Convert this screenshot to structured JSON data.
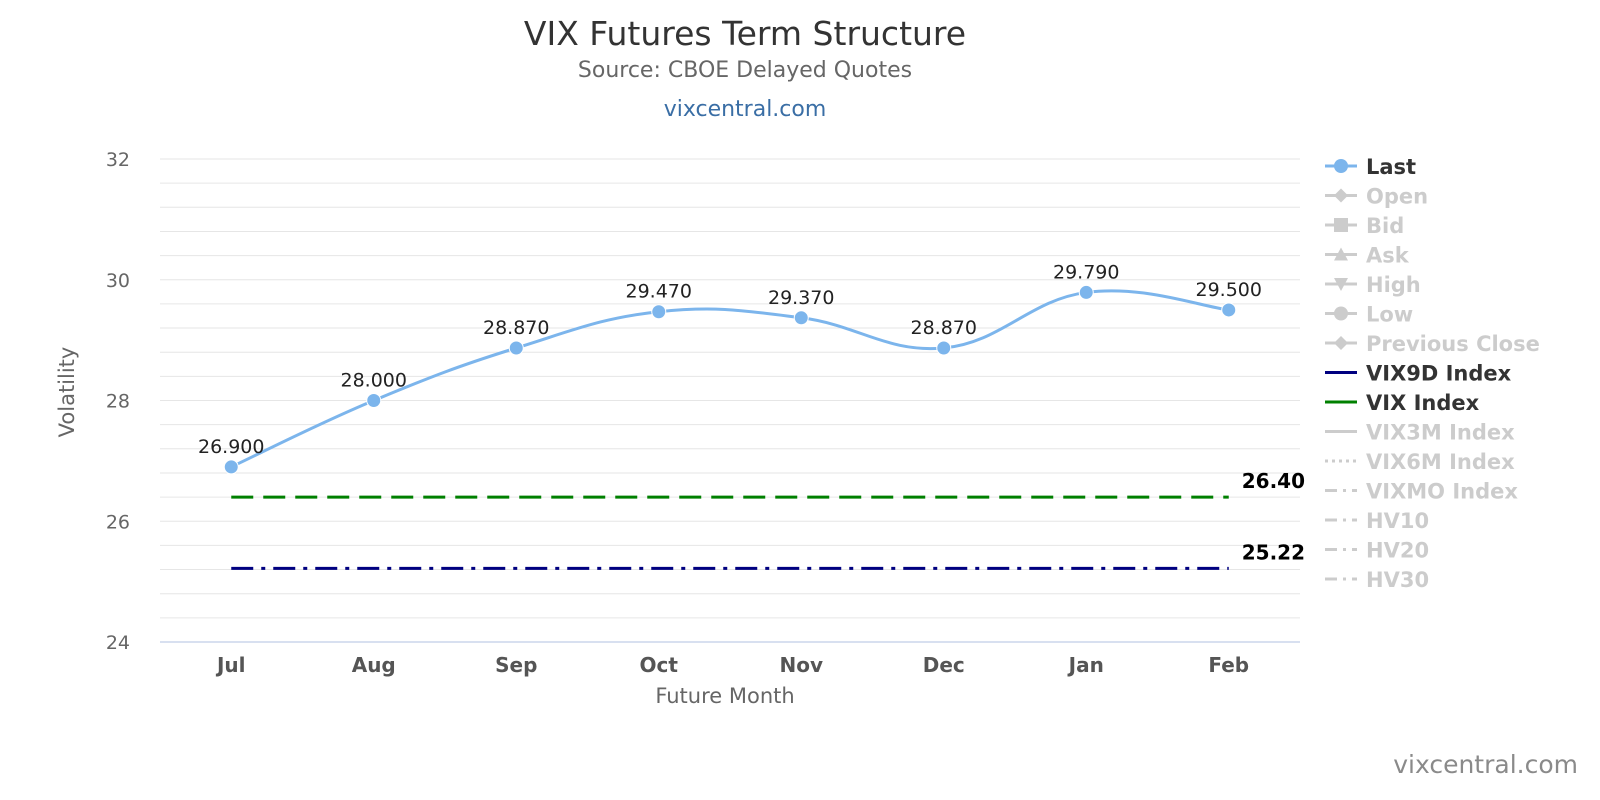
{
  "header": {
    "title": "VIX Futures Term Structure",
    "subtitle": "Source: CBOE Delayed Quotes",
    "link_text": "vixcentral.com"
  },
  "footer": {
    "credit": "vixcentral.com"
  },
  "colors": {
    "last": "#7cb5ec",
    "vix9d": "#000080",
    "vix": "#008000",
    "legend_active": "#333333",
    "legend_hidden": "#cccccc",
    "grid": "#e6e6e6",
    "axis_text": "#666666"
  },
  "chart_data": {
    "type": "line",
    "xlabel": "Future Month",
    "ylabel": "Volatility",
    "ylim": [
      24,
      32
    ],
    "y_ticks": [
      24,
      26,
      28,
      30,
      32
    ],
    "grid": true,
    "legend_position": "right",
    "categories": [
      "Jul",
      "Aug",
      "Sep",
      "Oct",
      "Nov",
      "Dec",
      "Jan",
      "Feb"
    ],
    "series": [
      {
        "name": "Last",
        "values": [
          26.9,
          28.0,
          28.87,
          29.47,
          29.37,
          28.87,
          29.79,
          29.5
        ],
        "data_labels": [
          "26.900",
          "28.000",
          "28.870",
          "29.470",
          "29.370",
          "28.870",
          "29.790",
          "29.500"
        ],
        "color": "#7cb5ec"
      }
    ],
    "reference_lines": [
      {
        "name": "VIX Index",
        "value": 26.4,
        "label": "26.40",
        "color": "#008000",
        "dash": "dash"
      },
      {
        "name": "VIX9D Index",
        "value": 25.22,
        "label": "25.22",
        "color": "#000080",
        "dash": "dashdot"
      }
    ],
    "legend": [
      {
        "name": "Last",
        "symbol": "circle",
        "visible": true
      },
      {
        "name": "Open",
        "symbol": "diamond",
        "visible": false
      },
      {
        "name": "Bid",
        "symbol": "square",
        "visible": false
      },
      {
        "name": "Ask",
        "symbol": "triangle",
        "visible": false
      },
      {
        "name": "High",
        "symbol": "triangle-down",
        "visible": false
      },
      {
        "name": "Low",
        "symbol": "circle",
        "visible": false
      },
      {
        "name": "Previous Close",
        "symbol": "diamond",
        "visible": false
      },
      {
        "name": "VIX9D Index",
        "symbol": "line",
        "visible": true
      },
      {
        "name": "VIX Index",
        "symbol": "line",
        "visible": true
      },
      {
        "name": "VIX3M Index",
        "symbol": "line",
        "visible": false
      },
      {
        "name": "VIX6M Index",
        "symbol": "dotted",
        "visible": false
      },
      {
        "name": "VIXMO Index",
        "symbol": "dashdot",
        "visible": false
      },
      {
        "name": "HV10",
        "symbol": "dashdot",
        "visible": false
      },
      {
        "name": "HV20",
        "symbol": "dashdot",
        "visible": false
      },
      {
        "name": "HV30",
        "symbol": "dashdot",
        "visible": false
      }
    ]
  }
}
